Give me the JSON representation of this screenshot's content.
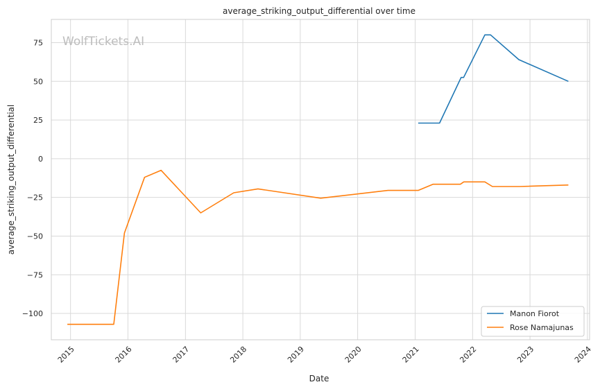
{
  "chart_data": {
    "type": "line",
    "title": "average_striking_output_differential over time",
    "xlabel": "Date",
    "ylabel": "average_striking_output_differential",
    "watermark": "WolfTickets.AI",
    "xlim": [
      "2014-09-01",
      "2024-01-15"
    ],
    "ylim": [
      -117,
      90
    ],
    "x_ticks": [
      "2015",
      "2016",
      "2017",
      "2018",
      "2019",
      "2020",
      "2021",
      "2022",
      "2023",
      "2024"
    ],
    "y_ticks": [
      75,
      50,
      25,
      0,
      -25,
      -50,
      -75,
      -100
    ],
    "y_tick_labels": [
      "75",
      "50",
      "25",
      "0",
      "−25",
      "−50",
      "−75",
      "−100"
    ],
    "grid": true,
    "legend_position": "bottom-right",
    "series": [
      {
        "name": "Manon Fiorot",
        "color": "#1f77b4",
        "points": [
          [
            "2021-01-20",
            23
          ],
          [
            "2021-06-05",
            23
          ],
          [
            "2021-10-20",
            52.5
          ],
          [
            "2021-11-05",
            52.5
          ],
          [
            "2022-03-20",
            80
          ],
          [
            "2022-04-25",
            80
          ],
          [
            "2022-10-22",
            64
          ],
          [
            "2023-09-02",
            50
          ]
        ]
      },
      {
        "name": "Rose Namajunas",
        "color": "#ff7f0e",
        "points": [
          [
            "2014-12-12",
            -107
          ],
          [
            "2015-10-03",
            -107
          ],
          [
            "2015-12-10",
            -48
          ],
          [
            "2016-04-16",
            -12
          ],
          [
            "2016-07-30",
            -7.5
          ],
          [
            "2017-04-08",
            -35
          ],
          [
            "2017-11-04",
            -22
          ],
          [
            "2018-04-07",
            -19.5
          ],
          [
            "2019-05-11",
            -25.5
          ],
          [
            "2020-07-12",
            -20.5
          ],
          [
            "2021-01-20",
            -20.5
          ],
          [
            "2021-04-24",
            -16.5
          ],
          [
            "2021-10-15",
            -16.5
          ],
          [
            "2021-11-06",
            -15
          ],
          [
            "2022-03-20",
            -15
          ],
          [
            "2022-05-07",
            -18
          ],
          [
            "2022-10-28",
            -18
          ],
          [
            "2023-09-02",
            -17
          ]
        ]
      }
    ]
  }
}
